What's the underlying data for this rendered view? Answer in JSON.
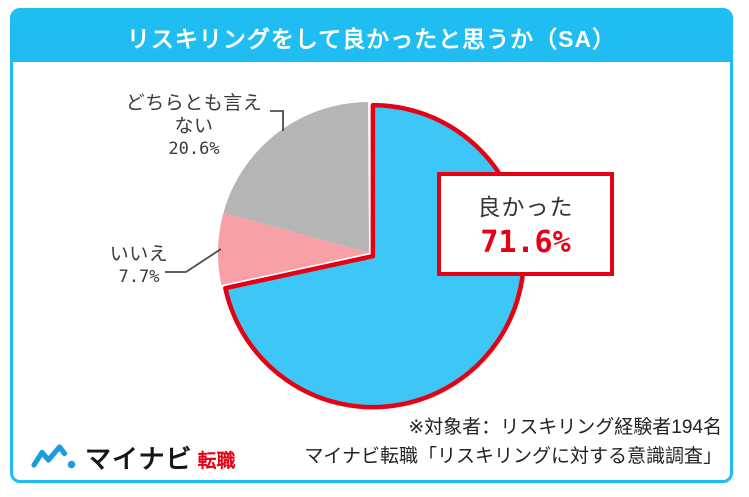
{
  "title": "リスキリングをして良かったと思うか（SA）",
  "chart_data": {
    "type": "pie",
    "title": "リスキリングをして良かったと思うか（SA）",
    "unit": "%",
    "direction": "clockwise",
    "start_angle_deg": 0,
    "legend_position": "callout-labels",
    "slices": [
      {
        "label": "良かった",
        "value": 71.6,
        "color": "#3CC7F6",
        "outline": "#E60013",
        "exploded": true
      },
      {
        "label": "いいえ",
        "value": 7.7,
        "color": "#F7A1A7"
      },
      {
        "label": "どちらとも言えない",
        "value": 20.6,
        "color": "#B5B5B5"
      }
    ]
  },
  "labels": {
    "yes": {
      "text": "良かった",
      "pct": "71.6%"
    },
    "no": {
      "text": "いいえ",
      "pct": "7.7%"
    },
    "neither": {
      "text": "どちらとも言えない",
      "pct": "20.6%"
    }
  },
  "footer": {
    "line1": "※対象者：リスキリング経験者194名",
    "line2": "マイナビ転職「リスキリングに対する意識調査」"
  },
  "logo": {
    "mark": "wave-line-icon",
    "brand": "マイナビ",
    "service": "転職"
  },
  "colors": {
    "cyan": "#1FBDF2",
    "red": "#E60013",
    "pie_blue": "#3CC7F6",
    "pink": "#F7A1A7",
    "gray": "#B5B5B5",
    "logo_blue": "#1E9BE0",
    "text_dark": "#333333"
  }
}
